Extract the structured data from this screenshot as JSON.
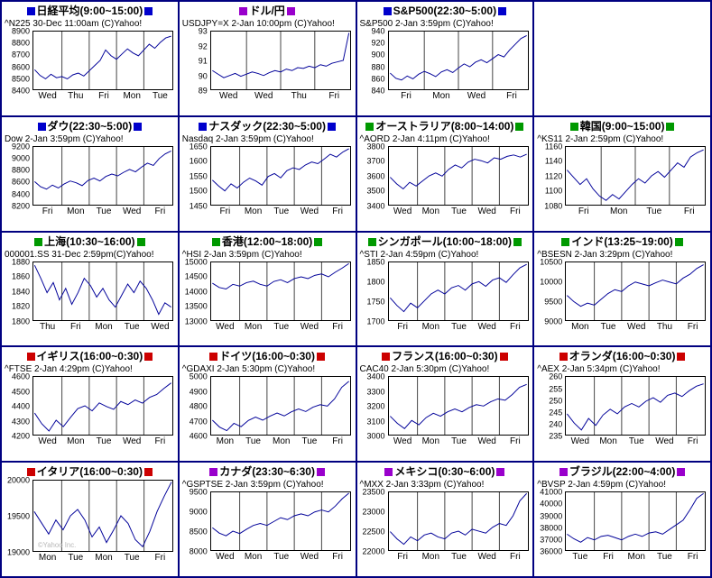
{
  "page": {
    "background": "#ffffff",
    "grid_border_color": "#000080",
    "plot_border_color": "#000000",
    "day_separator_color": "#404040",
    "line_color": "#000099",
    "text_color": "#000000",
    "marker_colors": {
      "us_japan": "#0000cc",
      "asia": "#009900",
      "europe": "#cc0000",
      "americas_fx": "#9900cc"
    }
  },
  "chart_data": [
    {
      "type": "line",
      "title": "日経平均(9:00~15:00)",
      "marker_color": "#0000cc",
      "subtitle": "^N225 30-Dec 11:00am (C)Yahoo!",
      "y_ticks": [
        8900,
        8800,
        8700,
        8600,
        8500,
        8400
      ],
      "x_ticks": [
        "Wed",
        "Thu",
        "Fri",
        "Mon",
        "Tue"
      ],
      "values": [
        8570,
        8520,
        8490,
        8530,
        8500,
        8510,
        8490,
        8525,
        8540,
        8515,
        8560,
        8605,
        8650,
        8740,
        8690,
        8660,
        8705,
        8750,
        8715,
        8690,
        8740,
        8790,
        8755,
        8805,
        8845,
        8860
      ]
    },
    {
      "type": "line",
      "title": "ドル/円",
      "marker_color": "#9900cc",
      "subtitle": "USDJPY=X 2-Jan 10:00pm (C)Yahoo!",
      "y_ticks": [
        93,
        92,
        91,
        90,
        89
      ],
      "x_ticks": [
        "Wed",
        "Wed",
        "Thu",
        "Fri"
      ],
      "values": [
        90.3,
        90.05,
        89.8,
        89.95,
        90.1,
        89.9,
        90.05,
        90.2,
        90.1,
        89.95,
        90.15,
        90.3,
        90.2,
        90.4,
        90.3,
        90.5,
        90.45,
        90.6,
        90.5,
        90.7,
        90.6,
        90.8,
        90.9,
        91.0,
        92.9
      ]
    },
    {
      "type": "line",
      "title": "S&P500(22:30~5:00)",
      "marker_color": "#0000cc",
      "subtitle": "S&P500 2-Jan 3:59pm (C)Yahoo!",
      "y_ticks": [
        940,
        920,
        900,
        880,
        860,
        840
      ],
      "x_ticks": [
        "Fri",
        "Mon",
        "Wed",
        "Fri"
      ],
      "values": [
        868,
        859,
        856,
        863,
        858,
        866,
        871,
        867,
        862,
        870,
        874,
        869,
        877,
        884,
        879,
        887,
        891,
        886,
        893,
        900,
        896,
        908,
        918,
        928,
        933
      ]
    },
    {
      "empty": true
    },
    {
      "type": "line",
      "title": "ダウ(22:30~5:00)",
      "marker_color": "#0000cc",
      "subtitle": "Dow 2-Jan 3:59pm (C)Yahoo!",
      "y_ticks": [
        9200,
        9000,
        8800,
        8600,
        8400,
        8200
      ],
      "x_ticks": [
        "Fri",
        "Mon",
        "Tue",
        "Wed",
        "Fri"
      ],
      "values": [
        8600,
        8510,
        8470,
        8540,
        8490,
        8560,
        8610,
        8580,
        8530,
        8620,
        8660,
        8610,
        8690,
        8730,
        8700,
        8760,
        8810,
        8770,
        8850,
        8920,
        8880,
        9000,
        9080,
        9130
      ]
    },
    {
      "type": "line",
      "title": "ナスダック(22:30~5:00)",
      "marker_color": "#0000cc",
      "subtitle": "Nasdaq 2-Jan 3:59pm (C)Yahoo!",
      "y_ticks": [
        1650,
        1600,
        1550,
        1500,
        1450
      ],
      "x_ticks": [
        "Fri",
        "Mon",
        "Tue",
        "Wed",
        "Fri"
      ],
      "values": [
        1535,
        1515,
        1498,
        1522,
        1508,
        1528,
        1542,
        1532,
        1518,
        1548,
        1558,
        1543,
        1568,
        1578,
        1572,
        1588,
        1598,
        1592,
        1608,
        1625,
        1615,
        1632,
        1644
      ]
    },
    {
      "type": "line",
      "title": "オーストラリア(8:00~14:00)",
      "marker_color": "#009900",
      "subtitle": "^AORD 2-Jan 4:11pm (C)Yahoo!",
      "y_ticks": [
        3800,
        3700,
        3600,
        3500,
        3400
      ],
      "x_ticks": [
        "Wed",
        "Mon",
        "Tue",
        "Wed",
        "Fri"
      ],
      "values": [
        3590,
        3545,
        3510,
        3555,
        3530,
        3565,
        3600,
        3620,
        3598,
        3645,
        3675,
        3655,
        3695,
        3715,
        3705,
        3690,
        3725,
        3715,
        3735,
        3745,
        3730,
        3750
      ]
    },
    {
      "type": "line",
      "title": "韓国(9:00~15:00)",
      "marker_color": "#009900",
      "subtitle": "^KS11 2-Jan 2:59pm (C)Yahoo!",
      "y_ticks": [
        1160,
        1140,
        1120,
        1100,
        1080
      ],
      "x_ticks": [
        "Fri",
        "Mon",
        "Tue",
        "Fri"
      ],
      "values": [
        1128,
        1118,
        1108,
        1116,
        1102,
        1092,
        1086,
        1094,
        1088,
        1098,
        1108,
        1116,
        1110,
        1120,
        1126,
        1118,
        1128,
        1138,
        1132,
        1146,
        1152,
        1156
      ]
    },
    {
      "type": "line",
      "title": "上海(10:30~16:00)",
      "marker_color": "#009900",
      "subtitle": "000001.SS 31-Dec 2:59pm(C)Yahoo!",
      "y_ticks": [
        1880,
        1860,
        1840,
        1820,
        1800
      ],
      "x_ticks": [
        "Thu",
        "Fri",
        "Mon",
        "Tue",
        "Wed"
      ],
      "values": [
        1876,
        1858,
        1838,
        1852,
        1828,
        1844,
        1822,
        1838,
        1858,
        1848,
        1832,
        1844,
        1828,
        1818,
        1834,
        1850,
        1838,
        1854,
        1844,
        1828,
        1808,
        1824,
        1818
      ]
    },
    {
      "type": "line",
      "title": "香港(12:00~18:00)",
      "marker_color": "#009900",
      "subtitle": "^HSI 2-Jan 3:59pm (C)Yahoo!",
      "y_ticks": [
        15000,
        14500,
        14000,
        13500,
        13000
      ],
      "x_ticks": [
        "Wed",
        "Mon",
        "Tue",
        "Wed",
        "Fri"
      ],
      "values": [
        14280,
        14130,
        14080,
        14240,
        14180,
        14300,
        14350,
        14240,
        14180,
        14340,
        14400,
        14300,
        14440,
        14500,
        14440,
        14550,
        14600,
        14500,
        14660,
        14800,
        14960
      ]
    },
    {
      "type": "line",
      "title": "シンガポール(10:00~18:00)",
      "marker_color": "#009900",
      "subtitle": "^STI 2-Jan 4:59pm (C)Yahoo!",
      "y_ticks": [
        1850,
        1800,
        1750,
        1700
      ],
      "x_ticks": [
        "Fri",
        "Mon",
        "Tue",
        "Wed",
        "Fri"
      ],
      "values": [
        1758,
        1738,
        1722,
        1744,
        1732,
        1750,
        1768,
        1778,
        1768,
        1784,
        1790,
        1778,
        1794,
        1800,
        1788,
        1804,
        1810,
        1798,
        1818,
        1836,
        1845
      ]
    },
    {
      "type": "line",
      "title": "インド(13:25~19:00)",
      "marker_color": "#009900",
      "subtitle": "^BSESN 2-Jan 3:29pm (C)Yahoo!",
      "y_ticks": [
        10500,
        10000,
        9500,
        9000
      ],
      "x_ticks": [
        "Mon",
        "Tue",
        "Wed",
        "Thu",
        "Fri"
      ],
      "values": [
        9640,
        9480,
        9360,
        9440,
        9390,
        9540,
        9690,
        9790,
        9740,
        9890,
        9990,
        9940,
        9890,
        9970,
        10040,
        9990,
        9940,
        10090,
        10190,
        10340,
        10440
      ]
    },
    {
      "type": "line",
      "title": "イギリス(16:00~0:30)",
      "marker_color": "#cc0000",
      "subtitle": "^FTSE 2-Jan 4:29pm (C)Yahoo!",
      "y_ticks": [
        4600,
        4500,
        4400,
        4300,
        4200
      ],
      "x_ticks": [
        "Wed",
        "Mon",
        "Tue",
        "Wed",
        "Fri"
      ],
      "values": [
        4350,
        4275,
        4225,
        4300,
        4255,
        4320,
        4380,
        4400,
        4365,
        4420,
        4395,
        4375,
        4430,
        4408,
        4440,
        4418,
        4458,
        4478,
        4520,
        4558
      ]
    },
    {
      "type": "line",
      "title": "ドイツ(16:00~0:30)",
      "marker_color": "#cc0000",
      "subtitle": "^GDAXI 2-Jan 5:30pm (C)Yahoo!",
      "y_ticks": [
        5000,
        4900,
        4800,
        4700,
        4600
      ],
      "x_ticks": [
        "Mon",
        "Tue",
        "Mon",
        "Tue",
        "Fri"
      ],
      "values": [
        4700,
        4652,
        4628,
        4678,
        4655,
        4698,
        4722,
        4700,
        4728,
        4750,
        4730,
        4758,
        4778,
        4760,
        4790,
        4808,
        4798,
        4848,
        4928,
        4970
      ]
    },
    {
      "type": "line",
      "title": "フランス(16:00~0:30)",
      "marker_color": "#cc0000",
      "subtitle": "CAC40 2-Jan 5:30pm (C)Yahoo!",
      "y_ticks": [
        3400,
        3300,
        3200,
        3100,
        3000
      ],
      "x_ticks": [
        "Wed",
        "Mon",
        "Tue",
        "Wed",
        "Fri"
      ],
      "values": [
        3128,
        3078,
        3042,
        3098,
        3068,
        3118,
        3148,
        3128,
        3158,
        3178,
        3158,
        3188,
        3208,
        3198,
        3228,
        3248,
        3238,
        3278,
        3328,
        3348
      ]
    },
    {
      "type": "line",
      "title": "オランダ(16:00~0:30)",
      "marker_color": "#cc0000",
      "subtitle": "^AEX 2-Jan 5:34pm (C)Yahoo!",
      "y_ticks": [
        260,
        255,
        250,
        245,
        240,
        235
      ],
      "x_ticks": [
        "Wed",
        "Mon",
        "Tue",
        "Wed",
        "Fri"
      ],
      "values": [
        244,
        240,
        237,
        242,
        239,
        243.5,
        246,
        244,
        247,
        248.5,
        247,
        249.5,
        251,
        249,
        252,
        253,
        251.5,
        254,
        256,
        257
      ]
    },
    {
      "type": "line",
      "title": "イタリア(16:00~0:30)",
      "marker_color": "#cc0000",
      "watermark": "©Yahoo Inc.",
      "y_ticks": [
        20000,
        19500,
        19000
      ],
      "x_ticks": [
        "Mon",
        "Tue",
        "Mon",
        "Tue",
        "Fri"
      ],
      "values": [
        19560,
        19400,
        19240,
        19440,
        19300,
        19500,
        19590,
        19440,
        19200,
        19340,
        19120,
        19300,
        19500,
        19390,
        19160,
        19060,
        19280,
        19560,
        19780,
        19980
      ]
    },
    {
      "type": "line",
      "title": "カナダ(23:30~6:30)",
      "marker_color": "#9900cc",
      "subtitle": "^GSPTSE 2-Jan 3:59pm (C)Yahoo!",
      "y_ticks": [
        9500,
        9000,
        8500,
        8000
      ],
      "x_ticks": [
        "Wed",
        "Mon",
        "Tue",
        "Wed",
        "Fri"
      ],
      "values": [
        8580,
        8440,
        8370,
        8490,
        8430,
        8540,
        8640,
        8690,
        8640,
        8740,
        8840,
        8790,
        8890,
        8940,
        8890,
        8990,
        9040,
        8990,
        9140,
        9330,
        9480
      ]
    },
    {
      "type": "line",
      "title": "メキシコ(0:30~6:00)",
      "marker_color": "#9900cc",
      "subtitle": "^MXX 2-Jan 3:33pm (C)Yahoo!",
      "y_ticks": [
        23500,
        23000,
        22500,
        22000
      ],
      "x_ticks": [
        "Fri",
        "Mon",
        "Tue",
        "Wed",
        "Fri"
      ],
      "values": [
        22480,
        22290,
        22150,
        22340,
        22240,
        22390,
        22440,
        22340,
        22290,
        22440,
        22490,
        22390,
        22540,
        22490,
        22440,
        22590,
        22690,
        22640,
        22890,
        23280,
        23470
      ]
    },
    {
      "type": "line",
      "title": "ブラジル(22:00~4:00)",
      "marker_color": "#9900cc",
      "subtitle": "^BVSP 2-Jan 4:59pm (C)Yahoo!",
      "y_ticks": [
        41000,
        40000,
        39000,
        38000,
        37000,
        36000
      ],
      "x_ticks": [
        "Tue",
        "Fri",
        "Mon",
        "Tue",
        "Fri"
      ],
      "values": [
        37380,
        36980,
        36680,
        37080,
        36880,
        37180,
        37280,
        37080,
        36880,
        37180,
        37380,
        37180,
        37480,
        37580,
        37380,
        37780,
        38180,
        38580,
        39480,
        40480,
        40900
      ]
    }
  ]
}
